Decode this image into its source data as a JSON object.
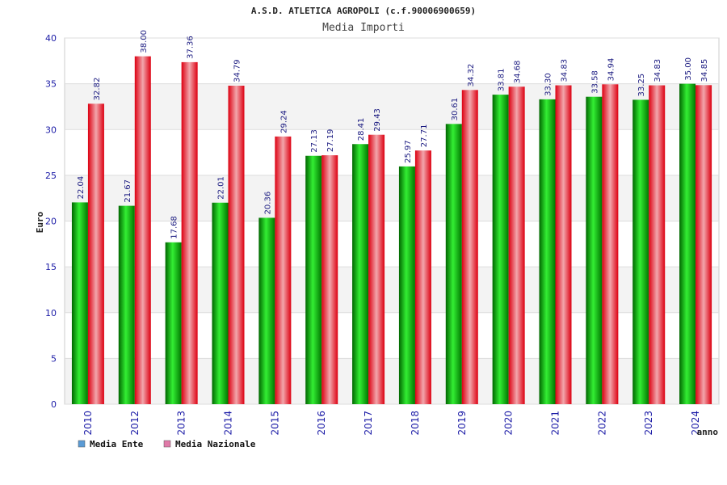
{
  "chart_data": {
    "type": "bar",
    "title": "A.S.D. ATLETICA AGROPOLI (c.f.90006900659)",
    "subtitle": "Media Importi",
    "xlabel": "anno",
    "ylabel": "Euro",
    "ylim": [
      0,
      40
    ],
    "yticks": [
      0,
      5,
      10,
      15,
      20,
      25,
      30,
      35,
      40
    ],
    "grid": true,
    "legend_position": "bottom-left",
    "categories": [
      "2010",
      "2012",
      "2013",
      "2014",
      "2015",
      "2016",
      "2017",
      "2018",
      "2019",
      "2020",
      "2021",
      "2022",
      "2023",
      "2024"
    ],
    "series": [
      {
        "name": "Media Ente",
        "color": "#00aa00",
        "legend_color": "#5b9bd5",
        "values": [
          22.04,
          21.67,
          17.68,
          22.01,
          20.36,
          27.13,
          28.41,
          25.97,
          30.61,
          33.81,
          33.3,
          33.58,
          33.25,
          35.0
        ],
        "labels": [
          "22.04",
          "21.67",
          "17.68",
          "22.01",
          "20.36",
          "27.13",
          "28.41",
          "25.97",
          "30.61",
          "33.81",
          "33.30",
          "33.58",
          "33.25",
          "35.00"
        ]
      },
      {
        "name": "Media Nazionale",
        "color": "#ee1122",
        "legend_color": "#e07aa8",
        "values": [
          32.82,
          38.0,
          37.36,
          34.79,
          29.24,
          27.19,
          29.43,
          27.71,
          34.32,
          34.68,
          34.83,
          34.94,
          34.83,
          34.85
        ],
        "labels": [
          "32.82",
          "38.00",
          "37.36",
          "34.79",
          "29.24",
          "27.19",
          "29.43",
          "27.71",
          "34.32",
          "34.68",
          "34.83",
          "34.94",
          "34.83",
          "34.85"
        ]
      }
    ]
  }
}
